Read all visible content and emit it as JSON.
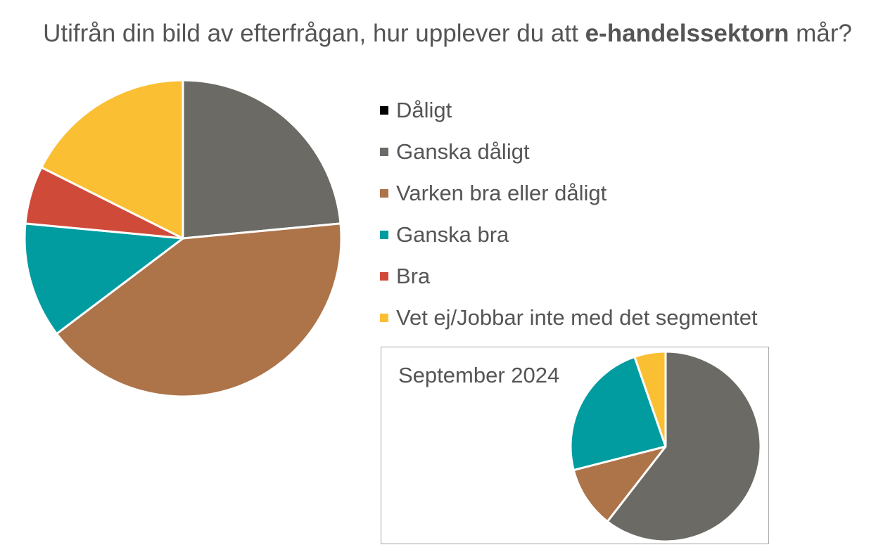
{
  "title": {
    "prefix": "Utifrån din bild av efterfrågan, hur upplever du att ",
    "bold": "e-handelssektorn",
    "suffix": " mår?"
  },
  "legend": [
    {
      "label": "Dåligt",
      "color": "#000000"
    },
    {
      "label": "Ganska dåligt",
      "color": "#6b6a65"
    },
    {
      "label": "Varken bra eller dåligt",
      "color": "#ad7349"
    },
    {
      "label": "Ganska bra",
      "color": "#009ca0"
    },
    {
      "label": "Bra",
      "color": "#d04a3a"
    },
    {
      "label": "Vet ej/Jobbar inte med det segmentet",
      "color": "#fbbf33"
    }
  ],
  "inset": {
    "label": "September 2024"
  },
  "chart_data": [
    {
      "type": "pie",
      "title": "Utifrån din bild av efterfrågan, hur upplever du att e-handelssektorn mår?",
      "categories": [
        "Dåligt",
        "Ganska dåligt",
        "Varken bra eller dåligt",
        "Ganska bra",
        "Bra",
        "Vet ej/Jobbar inte med det segmentet"
      ],
      "values": [
        0,
        23.5,
        41.2,
        11.8,
        5.9,
        17.6
      ],
      "colors": [
        "#000000",
        "#6b6a65",
        "#ad7349",
        "#009ca0",
        "#d04a3a",
        "#fbbf33"
      ],
      "start": "12 o'clock, clockwise"
    },
    {
      "type": "pie",
      "title": "September 2024",
      "categories": [
        "Dåligt",
        "Ganska dåligt",
        "Varken bra eller dåligt",
        "Ganska bra",
        "Bra",
        "Vet ej/Jobbar inte med det segmentet"
      ],
      "values": [
        0,
        60.5,
        10.5,
        23.7,
        0,
        5.3
      ],
      "colors": [
        "#000000",
        "#6b6a65",
        "#ad7349",
        "#009ca0",
        "#d04a3a",
        "#fbbf33"
      ],
      "start": "12 o'clock, clockwise"
    }
  ]
}
